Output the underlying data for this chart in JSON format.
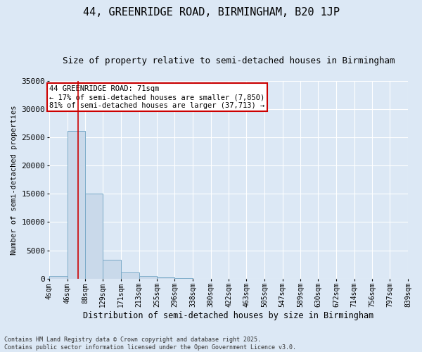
{
  "title": "44, GREENRIDGE ROAD, BIRMINGHAM, B20 1JP",
  "subtitle": "Size of property relative to semi-detached houses in Birmingham",
  "xlabel": "Distribution of semi-detached houses by size in Birmingham",
  "ylabel": "Number of semi-detached properties",
  "property_label": "44 GREENRIDGE ROAD: 71sqm",
  "pct_smaller": 17,
  "count_smaller": 7850,
  "pct_larger": 81,
  "count_larger": 37713,
  "bin_edges": [
    4,
    46,
    88,
    129,
    171,
    213,
    255,
    296,
    338,
    380,
    422,
    463,
    505,
    547,
    589,
    630,
    672,
    714,
    756,
    797,
    839
  ],
  "bin_labels": [
    "4sqm",
    "46sqm",
    "88sqm",
    "129sqm",
    "171sqm",
    "213sqm",
    "255sqm",
    "296sqm",
    "338sqm",
    "380sqm",
    "422sqm",
    "463sqm",
    "505sqm",
    "547sqm",
    "589sqm",
    "630sqm",
    "672sqm",
    "714sqm",
    "756sqm",
    "797sqm",
    "839sqm"
  ],
  "counts": [
    400,
    26100,
    15100,
    3300,
    1050,
    450,
    150,
    50,
    10,
    5,
    3,
    2,
    1,
    1,
    0,
    0,
    0,
    0,
    0,
    0
  ],
  "bar_color": "#c9d9ea",
  "bar_edge_color": "#7aaac8",
  "vline_color": "#cc0000",
  "vline_x": 71,
  "annotation_box_color": "#cc0000",
  "background_color": "#dce8f5",
  "grid_color": "#ffffff",
  "footer": "Contains HM Land Registry data © Crown copyright and database right 2025.\nContains public sector information licensed under the Open Government Licence v3.0.",
  "ylim": [
    0,
    35000
  ],
  "yticks": [
    0,
    5000,
    10000,
    15000,
    20000,
    25000,
    30000,
    35000
  ]
}
